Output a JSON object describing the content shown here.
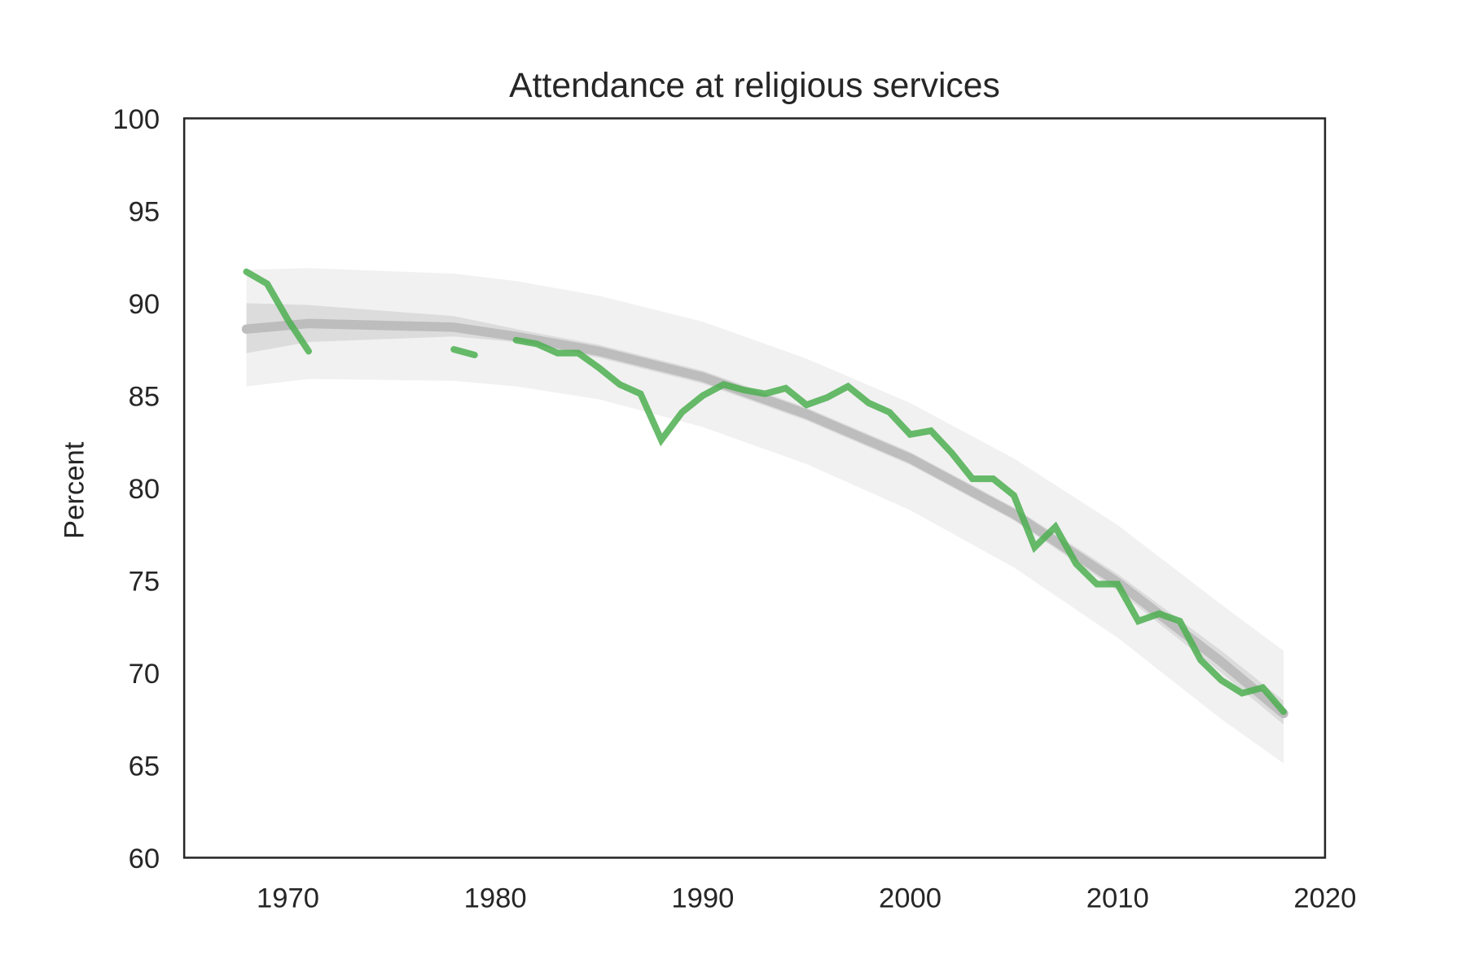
{
  "chart_data": {
    "type": "line",
    "title": "Attendance at religious services",
    "xlabel": "",
    "ylabel": "Percent",
    "xlim": [
      1965,
      2020
    ],
    "ylim": [
      60,
      100
    ],
    "xticks": [
      "1970",
      "1980",
      "1990",
      "2000",
      "2010",
      "2020"
    ],
    "yticks": [
      "60",
      "65",
      "70",
      "75",
      "80",
      "85",
      "90",
      "95",
      "100"
    ],
    "grid": false,
    "legend": "none",
    "colors": {
      "data": "#4caf50",
      "fit": "#bdbdbd",
      "inner_band": "#dcdcdc",
      "outer_band": "#f1f1f1",
      "axis": "#262626"
    },
    "series": [
      {
        "x": [
          1968,
          1969,
          1970,
          1971,
          1972,
          1973,
          1974,
          1975,
          1976,
          1977,
          1978,
          1979,
          1980,
          1981,
          1982,
          1983,
          1984,
          1985,
          1986,
          1987,
          1988,
          1989,
          1990,
          1991,
          1992,
          1993,
          1994,
          1995,
          1996,
          1997,
          1998,
          1999,
          2000,
          2001,
          2002,
          2003,
          2004,
          2005,
          2006,
          2007,
          2008,
          2009,
          2010,
          2011,
          2012,
          2013,
          2014,
          2015,
          2016,
          2017,
          2018
        ],
        "y": [
          91.7,
          91.05,
          89.1,
          87.4,
          null,
          null,
          null,
          null,
          null,
          null,
          87.5,
          87.2,
          null,
          88.0,
          87.8,
          87.3,
          87.3,
          86.5,
          85.6,
          85.1,
          82.6,
          84.1,
          85.0,
          85.6,
          85.3,
          85.1,
          85.4,
          84.5,
          84.9,
          85.5,
          84.6,
          84.1,
          82.9,
          83.1,
          81.9,
          80.5,
          80.5,
          79.6,
          76.8,
          77.9,
          75.9,
          74.8,
          74.8,
          72.8,
          73.2,
          72.8,
          70.7,
          69.6,
          68.9,
          69.2,
          67.9
        ]
      }
    ],
    "fit": {
      "x": [
        1968,
        1971,
        1978,
        1981,
        1985,
        1990,
        1995,
        2000,
        2005,
        2010,
        2015,
        2018
      ],
      "y": [
        88.6,
        88.9,
        88.7,
        88.2,
        87.4,
        86.0,
        84.0,
        81.6,
        78.6,
        74.9,
        70.6,
        67.8
      ],
      "inner_lower": [
        87.3,
        87.9,
        88.2,
        87.9,
        87.05,
        85.65,
        83.65,
        81.25,
        78.25,
        74.45,
        70.0,
        67.2
      ],
      "inner_upper": [
        90.0,
        89.9,
        89.3,
        88.6,
        87.75,
        86.35,
        84.35,
        81.95,
        78.95,
        75.35,
        71.2,
        68.5
      ],
      "outer_lower": [
        85.5,
        85.9,
        85.8,
        85.5,
        84.8,
        83.3,
        81.3,
        78.8,
        75.7,
        71.9,
        67.5,
        65.1
      ],
      "outer_upper": [
        91.8,
        91.9,
        91.6,
        91.2,
        90.4,
        89.0,
        87.0,
        84.6,
        81.6,
        78.0,
        73.7,
        71.2
      ]
    }
  }
}
